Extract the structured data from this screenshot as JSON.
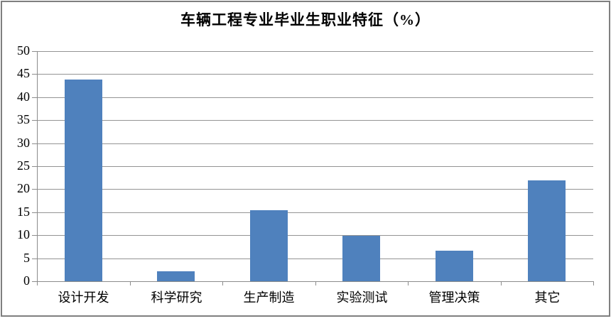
{
  "window": {
    "background": "#ffffff",
    "frame_border_color": "#7f7f7f"
  },
  "chart_data": {
    "type": "bar",
    "title": "车辆工程专业毕业生职业特征（%）",
    "categories": [
      "设计开发",
      "科学研究",
      "生产制造",
      "实验测试",
      "管理决策",
      "其它"
    ],
    "values": [
      43.9,
      2.2,
      15.4,
      9.8,
      6.6,
      21.9
    ],
    "xlabel": "",
    "ylabel": "",
    "ylim": [
      0,
      50
    ],
    "ytick_step": 5,
    "ytick_labels": [
      "0",
      "5",
      "10",
      "15",
      "20",
      "25",
      "30",
      "35",
      "40",
      "45",
      "50"
    ],
    "grid": "horizontal",
    "legend": "none",
    "bar_color": "#4F81BD",
    "axis_color": "#8C8C8C",
    "gridline_color": "#949494",
    "text_color": "#000000"
  }
}
